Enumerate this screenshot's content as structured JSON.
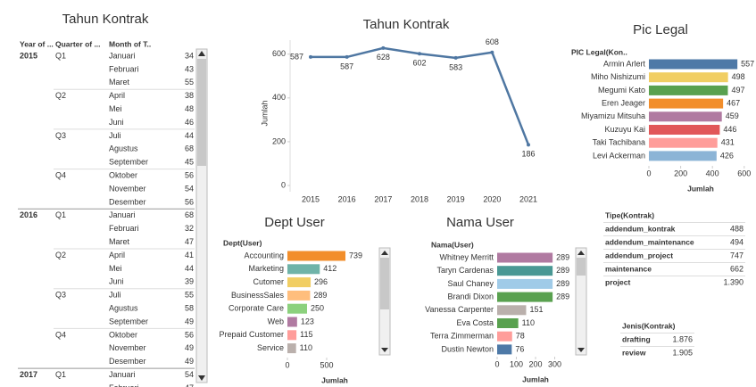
{
  "left_table": {
    "title": "Tahun Kontrak",
    "headers": [
      "Year of ...",
      "Quarter of ...",
      "Month of T.."
    ],
    "years": [
      {
        "year": "2015",
        "quarters": [
          {
            "quarter": "Q1",
            "months": [
              [
                "Januari",
                34
              ],
              [
                "Februari",
                43
              ],
              [
                "Maret",
                55
              ]
            ]
          },
          {
            "quarter": "Q2",
            "months": [
              [
                "April",
                38
              ],
              [
                "Mei",
                48
              ],
              [
                "Juni",
                46
              ]
            ]
          },
          {
            "quarter": "Q3",
            "months": [
              [
                "Juli",
                44
              ],
              [
                "Agustus",
                68
              ],
              [
                "September",
                45
              ]
            ]
          },
          {
            "quarter": "Q4",
            "months": [
              [
                "Oktober",
                56
              ],
              [
                "November",
                54
              ],
              [
                "Desember",
                56
              ]
            ]
          }
        ]
      },
      {
        "year": "2016",
        "quarters": [
          {
            "quarter": "Q1",
            "months": [
              [
                "Januari",
                68
              ],
              [
                "Februari",
                32
              ],
              [
                "Maret",
                47
              ]
            ]
          },
          {
            "quarter": "Q2",
            "months": [
              [
                "April",
                41
              ],
              [
                "Mei",
                44
              ],
              [
                "Juni",
                39
              ]
            ]
          },
          {
            "quarter": "Q3",
            "months": [
              [
                "Juli",
                55
              ],
              [
                "Agustus",
                58
              ],
              [
                "September",
                49
              ]
            ]
          },
          {
            "quarter": "Q4",
            "months": [
              [
                "Oktober",
                56
              ],
              [
                "November",
                49
              ],
              [
                "Desember",
                49
              ]
            ]
          }
        ]
      },
      {
        "year": "2017",
        "quarters": [
          {
            "quarter": "Q1",
            "months": [
              [
                "Januari",
                54
              ],
              [
                "Februari",
                47
              ]
            ]
          }
        ]
      }
    ]
  },
  "chart_data": [
    {
      "type": "line",
      "title": "Tahun Kontrak",
      "y_label": "Jumlah",
      "categories": [
        "2015",
        "2016",
        "2017",
        "2018",
        "2019",
        "2020",
        "2021"
      ],
      "values": [
        587,
        587,
        628,
        602,
        583,
        608,
        186
      ],
      "color": "#4f77a2",
      "ylim": [
        0,
        660
      ],
      "yticks": [
        0,
        200,
        400,
        600
      ]
    },
    {
      "type": "hbar",
      "title": "Pic Legal",
      "header": "PIC Legal(Kon..",
      "x_label": "Jumlah",
      "categories": [
        "Armin Arlert",
        "Miho Nishizumi",
        "Megumi Kato",
        "Eren Jeager",
        "Miyamizu Mitsuha",
        "Kuzuyu Kai",
        "Taki Tachibana",
        "Levi Ackerman"
      ],
      "values": [
        557,
        498,
        497,
        467,
        459,
        446,
        431,
        426
      ],
      "colors": [
        "#4e79a7",
        "#f1ce63",
        "#59a14f",
        "#f28e2b",
        "#b07aa1",
        "#e15759",
        "#ff9d9a",
        "#8cb4d6"
      ],
      "xticks": [
        0,
        200,
        400,
        600
      ]
    },
    {
      "type": "hbar",
      "title": "Dept User",
      "header": "Dept(User)",
      "x_label": "Jumlah",
      "categories": [
        "Accounting",
        "Marketing",
        "Cutomer",
        "BusinessSales",
        "Corporate Care",
        "Web",
        "Prepaid Customer",
        "Service"
      ],
      "values": [
        739,
        412,
        296,
        289,
        250,
        123,
        115,
        110
      ],
      "colors": [
        "#f28e2b",
        "#6fb3a8",
        "#f1ce63",
        "#ffbe7d",
        "#8cd17d",
        "#b07aa1",
        "#ff9d9a",
        "#bab0ac"
      ],
      "xticks": [
        0,
        500
      ]
    },
    {
      "type": "hbar",
      "title": "Nama User",
      "header": "Nama(User)",
      "x_label": "Jumlah",
      "categories": [
        "Whitney Merritt",
        "Taryn Cardenas",
        "Saul Chaney",
        "Brandi Dixon",
        "Vanessa Carpenter",
        "Eva Costa",
        "Terra Zimmerman",
        "Dustin Newton"
      ],
      "values": [
        289,
        289,
        289,
        289,
        151,
        110,
        78,
        76
      ],
      "colors": [
        "#b07aa1",
        "#499894",
        "#a0cbe8",
        "#59a14f",
        "#bab0ac",
        "#59a14f",
        "#ff9d9a",
        "#4e79a7"
      ],
      "xticks": [
        0,
        100,
        200,
        300
      ]
    }
  ],
  "tipe_table": {
    "header": "Tipe(Kontrak)",
    "rows": [
      [
        "addendum_kontrak",
        488
      ],
      [
        "addendum_maintenance",
        494
      ],
      [
        "addendum_project",
        747
      ],
      [
        "maintenance",
        662
      ],
      [
        "project",
        "1.390"
      ]
    ]
  },
  "jenis_table": {
    "header": "Jenis(Kontrak)",
    "rows": [
      [
        "drafting",
        "1.876"
      ],
      [
        "review",
        "1.905"
      ]
    ]
  }
}
